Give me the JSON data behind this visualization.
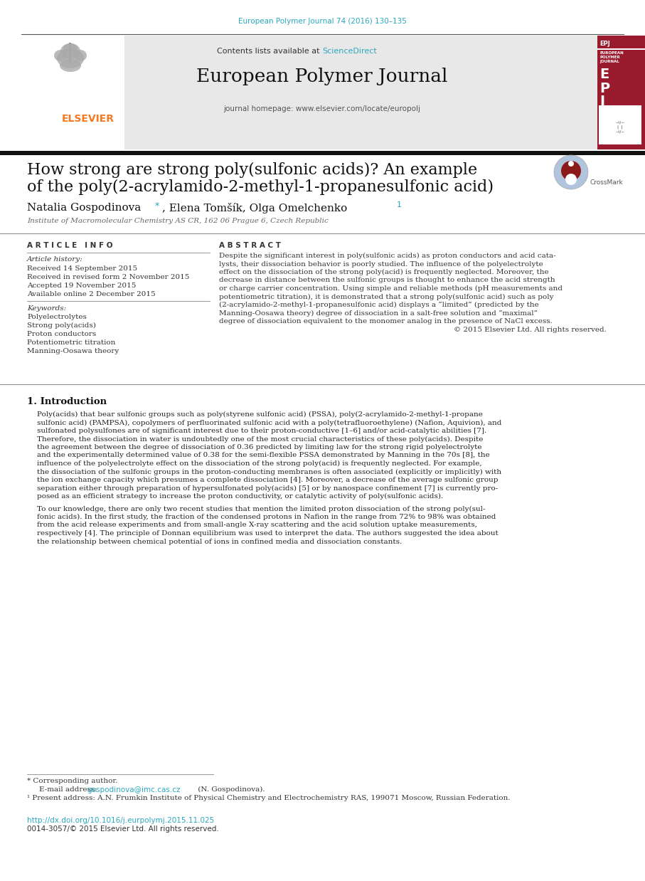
{
  "page_bg": "#ffffff",
  "top_citation": "European Polymer Journal 74 (2016) 130–135",
  "top_citation_color": "#29a8c0",
  "header_bg": "#e8e8e8",
  "journal_name": "European Polymer Journal",
  "journal_url": "journal homepage: www.elsevier.com/locate/europolj",
  "article_title_line1": "How strong are strong poly(sulfonic acids)? An example",
  "article_title_line2": "of the poly(2-acrylamido-2-methyl-1-propanesulfonic acid)",
  "affiliation": "Institute of Macromolecular Chemistry AS CR, 162 06 Prague 6, Czech Republic",
  "section_article_info": "ARTICLE INFO",
  "section_abstract": "ABSTRACT",
  "article_history_label": "Article history:",
  "received": "Received 14 September 2015",
  "received_revised": "Received in revised form 2 November 2015",
  "accepted": "Accepted 19 November 2015",
  "available": "Available online 2 December 2015",
  "keywords_label": "Keywords:",
  "keywords": [
    "Polyelectrolytes",
    "Strong poly(acids)",
    "Proton conductors",
    "Potentiometric titration",
    "Manning-Oosawa theory"
  ],
  "abstract_lines": [
    "Despite the significant interest in poly(sulfonic acids) as proton conductors and acid cata-",
    "lysts, their dissociation behavior is poorly studied. The influence of the polyelectrolyte",
    "effect on the dissociation of the strong poly(acid) is frequently neglected. Moreover, the",
    "decrease in distance between the sulfonic groups is thought to enhance the acid strength",
    "or charge carrier concentration. Using simple and reliable methods (pH measurements and",
    "potentiometric titration), it is demonstrated that a strong poly(sulfonic acid) such as poly",
    "(2-acrylamido-2-methyl-1-propanesulfonic acid) displays a “limited” (predicted by the",
    "Manning-Oosawa theory) degree of dissociation in a salt-free solution and “maximal”",
    "degree of dissociation equivalent to the monomer analog in the presence of NaCl excess.",
    "© 2015 Elsevier Ltd. All rights reserved."
  ],
  "section_intro": "1. Introduction",
  "intro1_lines": [
    "Poly(acids) that bear sulfonic groups such as poly(styrene sulfonic acid) (PSSA), poly(2-acrylamido-2-methyl-1-propane",
    "sulfonic acid) (PAMPSA), copolymers of perfluorinated sulfonic acid with a poly(tetrafluoroethylene) (Nafion, Aquivion), and",
    "sulfonated polysulfones are of significant interest due to their proton-conductive [1–6] and/or acid-catalytic abilities [7].",
    "Therefore, the dissociation in water is undoubtedly one of the most crucial characteristics of these poly(acids). Despite",
    "the agreement between the degree of dissociation of 0.36 predicted by limiting law for the strong rigid polyelectrolyte",
    "and the experimentally determined value of 0.38 for the semi-flexible PSSA demonstrated by Manning in the 70s [8], the",
    "influence of the polyelectrolyte effect on the dissociation of the strong poly(acid) is frequently neglected. For example,",
    "the dissociation of the sulfonic groups in the proton-conducting membranes is often associated (explicitly or implicitly) with",
    "the ion exchange capacity which presumes a complete dissociation [4]. Moreover, a decrease of the average sulfonic group",
    "separation either through preparation of hypersulfonated poly(acids) [5] or by nanospace confinement [7] is currently pro-",
    "posed as an efficient strategy to increase the proton conductivity, or catalytic activity of poly(sulfonic acids)."
  ],
  "intro2_lines": [
    "To our knowledge, there are only two recent studies that mention the limited proton dissociation of the strong poly(sul-",
    "fonic acids). In the first study, the fraction of the condensed protons in Nafion in the range from 72% to 98% was obtained",
    "from the acid release experiments and from small-angle X-ray scattering and the acid solution uptake measurements,",
    "respectively [4]. The principle of Donnan equilibrium was used to interpret the data. The authors suggested the idea about",
    "the relationship between chemical potential of ions in confined media and dissociation constants."
  ],
  "footnote_corresponding": "* Corresponding author.",
  "footnote_email_label": "E-mail address:",
  "footnote_email": "gospodinova@imc.cas.cz",
  "footnote_email_color": "#29a8c0",
  "footnote_name": " (N. Gospodinova).",
  "footnote_1": "¹ Present address: A.N. Frumkin Institute of Physical Chemistry and Electrochemistry RAS, 199071 Moscow, Russian Federation.",
  "doi_text": "http://dx.doi.org/10.1016/j.eurpolymj.2015.11.025",
  "doi_color": "#29a8c0",
  "issn": "0014-3057/© 2015 Elsevier Ltd. All rights reserved.",
  "link_color": "#29a8c0",
  "elsevier_color": "#f47920",
  "epj_bg": "#9b1b2e",
  "scidir_color": "#29a8c0"
}
